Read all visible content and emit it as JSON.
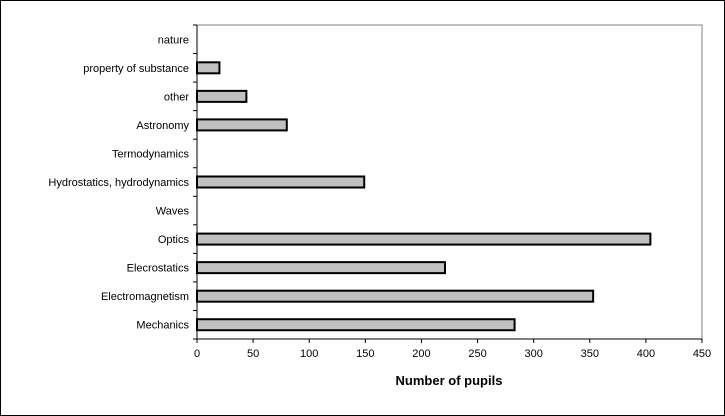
{
  "chart_data": {
    "type": "bar",
    "orientation": "horizontal",
    "categories": [
      "Mechanics",
      "Electromagnetism",
      "Elecrostatics",
      "Optics",
      "Waves",
      "Hydrostatics, hydrodynamics",
      "Termodynamics",
      "Astronomy",
      "other",
      "property of substance",
      "nature"
    ],
    "values": [
      283,
      353,
      221,
      404,
      0,
      149,
      0,
      80,
      44,
      20,
      0
    ],
    "title": "",
    "xlabel": "Number of pupils",
    "ylabel": "",
    "xlim": [
      0,
      450
    ],
    "xticks": [
      0,
      50,
      100,
      150,
      200,
      250,
      300,
      350,
      400,
      450
    ],
    "grid": false,
    "legend": "none",
    "bar_color": "#c0c0c0",
    "bar_edge_color": "#000000"
  }
}
